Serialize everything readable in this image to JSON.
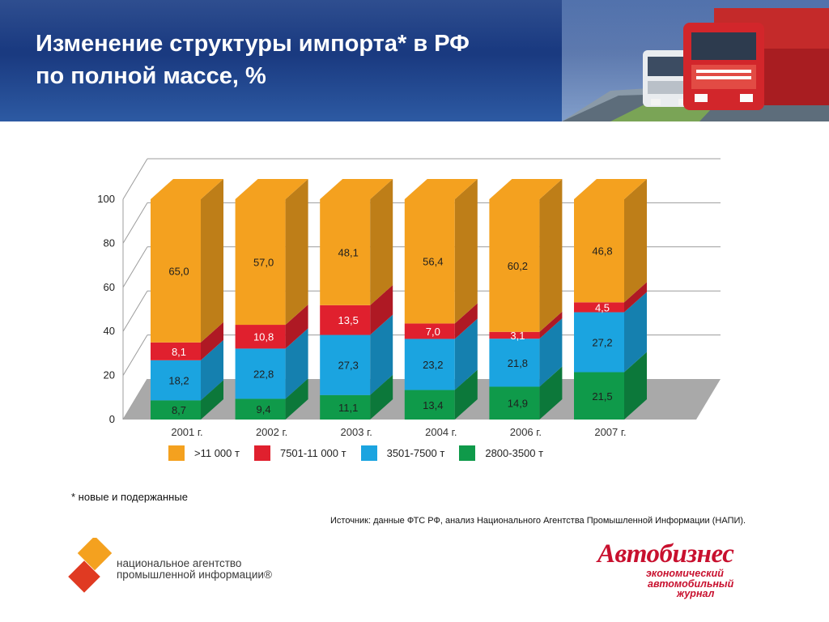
{
  "header": {
    "title_line1": "Изменение структуры импорта* в РФ",
    "title_line2": "по полной массе, %"
  },
  "chart_data": {
    "type": "bar",
    "stacked": true,
    "categories": [
      "2001 г.",
      "2002 г.",
      "2003 г.",
      "2004 г.",
      "2006 г.",
      "2007 г."
    ],
    "series": [
      {
        "name": "2800-3500 т",
        "color": "#0f9a4a",
        "values": [
          8.7,
          9.4,
          11.1,
          13.4,
          14.9,
          21.5
        ],
        "labels": [
          "8,7",
          "9,4",
          "11,1",
          "13,4",
          "14,9",
          "21,5"
        ]
      },
      {
        "name": "3501-7500 т",
        "color": "#1ba4e0",
        "values": [
          18.2,
          22.8,
          27.3,
          23.2,
          21.8,
          27.2
        ],
        "labels": [
          "18,2",
          "22,8",
          "27,3",
          "23,2",
          "21,8",
          "27,2"
        ]
      },
      {
        "name": "7501-11 000 т",
        "color": "#e0202e",
        "values": [
          8.1,
          10.8,
          13.5,
          7.0,
          3.1,
          4.5
        ],
        "labels": [
          "8,1",
          "10,8",
          "13,5",
          "7,0",
          "3,1",
          "4,5"
        ]
      },
      {
        "name": ">11 000 т",
        "color": "#f4a11f",
        "values": [
          65.0,
          57.0,
          48.1,
          56.4,
          60.2,
          46.8
        ],
        "labels": [
          "65,0",
          "57,0",
          "48,1",
          "56,4",
          "60,2",
          "46,8"
        ]
      }
    ],
    "ylim": [
      0,
      100
    ],
    "yticks": [
      "0",
      "20",
      "40",
      "60",
      "80",
      "100"
    ],
    "grid": true,
    "legend_position": "bottom",
    "legend_order": [
      ">11 000 т",
      "7501-11 000 т",
      "3501-7500 т",
      "2800-3500 т"
    ]
  },
  "footnote": "* новые и подержанные",
  "source": "Источник: данные ФТС РФ, анализ Национального Агентства Промышленной Информации (НАПИ).",
  "napi_logo": {
    "line1": "национальное агентство",
    "line2": "промышленной информации®"
  },
  "avtobiznes_logo": {
    "brand": "Автобизнес",
    "line1": "экономический",
    "line2": "автомобильный",
    "line3": "журнал"
  }
}
